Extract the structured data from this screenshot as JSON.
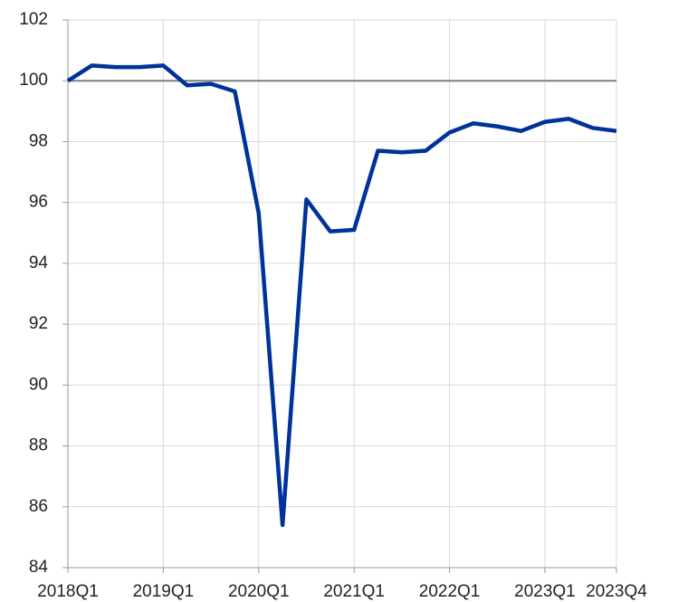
{
  "chart_data": {
    "type": "line",
    "categories": [
      "2018Q1",
      null,
      null,
      null,
      "2019Q1",
      null,
      null,
      null,
      "2020Q1",
      null,
      null,
      null,
      "2021Q1",
      null,
      null,
      null,
      "2022Q1",
      null,
      null,
      null,
      "2023Q1",
      null,
      null,
      "2023Q4"
    ],
    "series": [
      {
        "color": "#003299",
        "values": [
          100.0,
          100.5,
          100.45,
          100.45,
          100.5,
          99.85,
          99.9,
          99.65,
          95.65,
          85.4,
          96.1,
          95.05,
          95.1,
          97.7,
          97.65,
          97.7,
          98.3,
          98.6,
          98.5,
          98.35,
          98.65,
          98.75,
          98.45,
          98.35
        ]
      }
    ],
    "ylim": [
      84,
      102
    ],
    "yticks": [
      84,
      86,
      88,
      90,
      92,
      94,
      96,
      98,
      100,
      102
    ],
    "grid": true,
    "reference_line": 100
  }
}
